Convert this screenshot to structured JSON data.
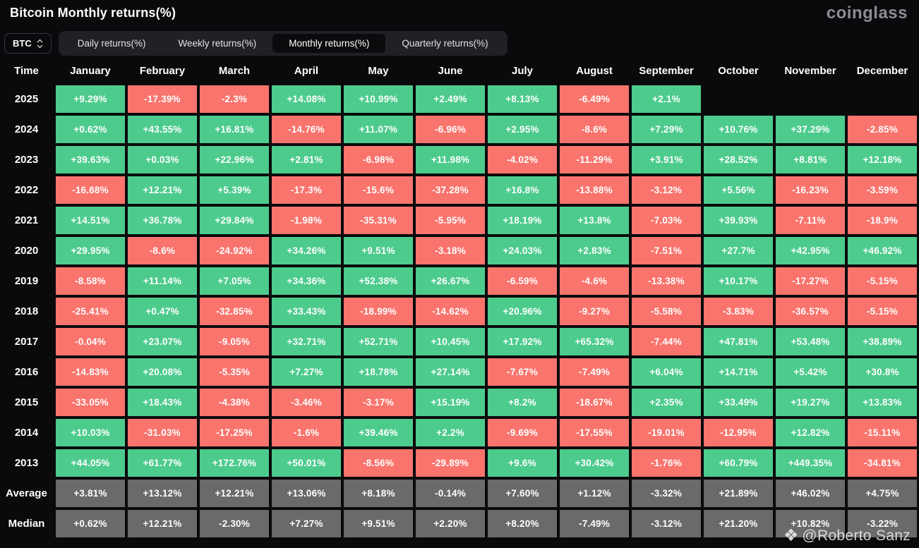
{
  "page": {
    "title": "Bitcoin Monthly returns(%)",
    "brand": "coinglass"
  },
  "toolbar": {
    "symbol": {
      "label": "BTC"
    },
    "tabs": [
      {
        "label": "Daily returns(%)",
        "active": false
      },
      {
        "label": "Weekly returns(%)",
        "active": false
      },
      {
        "label": "Monthly returns(%)",
        "active": true
      },
      {
        "label": "Quarterly returns(%)",
        "active": false
      }
    ]
  },
  "colors": {
    "positive": "#4dcb8d",
    "negative": "#f9746d",
    "neutral": "#6a6a6a"
  },
  "chart_data": {
    "type": "heatmap",
    "title": "Bitcoin Monthly returns(%)",
    "columns": [
      "Time",
      "January",
      "February",
      "March",
      "April",
      "May",
      "June",
      "July",
      "August",
      "September",
      "October",
      "November",
      "December"
    ],
    "rows": [
      {
        "label": "2025",
        "summary": false,
        "values": [
          "+9.29%",
          "-17.39%",
          "-2.3%",
          "+14.08%",
          "+10.99%",
          "+2.49%",
          "+8.13%",
          "-6.49%",
          "+2.1%",
          null,
          null,
          null
        ]
      },
      {
        "label": "2024",
        "summary": false,
        "values": [
          "+0.62%",
          "+43.55%",
          "+16.81%",
          "-14.76%",
          "+11.07%",
          "-6.96%",
          "+2.95%",
          "-8.6%",
          "+7.29%",
          "+10.76%",
          "+37.29%",
          "-2.85%"
        ]
      },
      {
        "label": "2023",
        "summary": false,
        "values": [
          "+39.63%",
          "+0.03%",
          "+22.96%",
          "+2.81%",
          "-6.98%",
          "+11.98%",
          "-4.02%",
          "-11.29%",
          "+3.91%",
          "+28.52%",
          "+8.81%",
          "+12.18%"
        ]
      },
      {
        "label": "2022",
        "summary": false,
        "values": [
          "-16.68%",
          "+12.21%",
          "+5.39%",
          "-17.3%",
          "-15.6%",
          "-37.28%",
          "+16.8%",
          "-13.88%",
          "-3.12%",
          "+5.56%",
          "-16.23%",
          "-3.59%"
        ]
      },
      {
        "label": "2021",
        "summary": false,
        "values": [
          "+14.51%",
          "+36.78%",
          "+29.84%",
          "-1.98%",
          "-35.31%",
          "-5.95%",
          "+18.19%",
          "+13.8%",
          "-7.03%",
          "+39.93%",
          "-7.11%",
          "-18.9%"
        ]
      },
      {
        "label": "2020",
        "summary": false,
        "values": [
          "+29.95%",
          "-8.6%",
          "-24.92%",
          "+34.26%",
          "+9.51%",
          "-3.18%",
          "+24.03%",
          "+2.83%",
          "-7.51%",
          "+27.7%",
          "+42.95%",
          "+46.92%"
        ]
      },
      {
        "label": "2019",
        "summary": false,
        "values": [
          "-8.58%",
          "+11.14%",
          "+7.05%",
          "+34.36%",
          "+52.38%",
          "+26.67%",
          "-6.59%",
          "-4.6%",
          "-13.38%",
          "+10.17%",
          "-17.27%",
          "-5.15%"
        ]
      },
      {
        "label": "2018",
        "summary": false,
        "values": [
          "-25.41%",
          "+0.47%",
          "-32.85%",
          "+33.43%",
          "-18.99%",
          "-14.62%",
          "+20.96%",
          "-9.27%",
          "-5.58%",
          "-3.83%",
          "-36.57%",
          "-5.15%"
        ]
      },
      {
        "label": "2017",
        "summary": false,
        "values": [
          "-0.04%",
          "+23.07%",
          "-9.05%",
          "+32.71%",
          "+52.71%",
          "+10.45%",
          "+17.92%",
          "+65.32%",
          "-7.44%",
          "+47.81%",
          "+53.48%",
          "+38.89%"
        ]
      },
      {
        "label": "2016",
        "summary": false,
        "values": [
          "-14.83%",
          "+20.08%",
          "-5.35%",
          "+7.27%",
          "+18.78%",
          "+27.14%",
          "-7.67%",
          "-7.49%",
          "+6.04%",
          "+14.71%",
          "+5.42%",
          "+30.8%"
        ]
      },
      {
        "label": "2015",
        "summary": false,
        "values": [
          "-33.05%",
          "+18.43%",
          "-4.38%",
          "-3.46%",
          "-3.17%",
          "+15.19%",
          "+8.2%",
          "-18.67%",
          "+2.35%",
          "+33.49%",
          "+19.27%",
          "+13.83%"
        ]
      },
      {
        "label": "2014",
        "summary": false,
        "values": [
          "+10.03%",
          "-31.03%",
          "-17.25%",
          "-1.6%",
          "+39.46%",
          "+2.2%",
          "-9.69%",
          "-17.55%",
          "-19.01%",
          "-12.95%",
          "+12.82%",
          "-15.11%"
        ]
      },
      {
        "label": "2013",
        "summary": false,
        "values": [
          "+44.05%",
          "+61.77%",
          "+172.76%",
          "+50.01%",
          "-8.56%",
          "-29.89%",
          "+9.6%",
          "+30.42%",
          "-1.76%",
          "+60.79%",
          "+449.35%",
          "-34.81%"
        ]
      },
      {
        "label": "Average",
        "summary": true,
        "values": [
          "+3.81%",
          "+13.12%",
          "+12.21%",
          "+13.06%",
          "+8.18%",
          "-0.14%",
          "+7.60%",
          "+1.12%",
          "-3.32%",
          "+21.89%",
          "+46.02%",
          "+4.75%"
        ]
      },
      {
        "label": "Median",
        "summary": true,
        "values": [
          "+0.62%",
          "+12.21%",
          "-2.30%",
          "+7.27%",
          "+9.51%",
          "+2.20%",
          "+8.20%",
          "-7.49%",
          "-3.12%",
          "+21.20%",
          "+10.82%",
          "-3.22%"
        ]
      }
    ]
  },
  "watermark": {
    "icon": "❖",
    "handle": "@Roberto Sanz"
  }
}
